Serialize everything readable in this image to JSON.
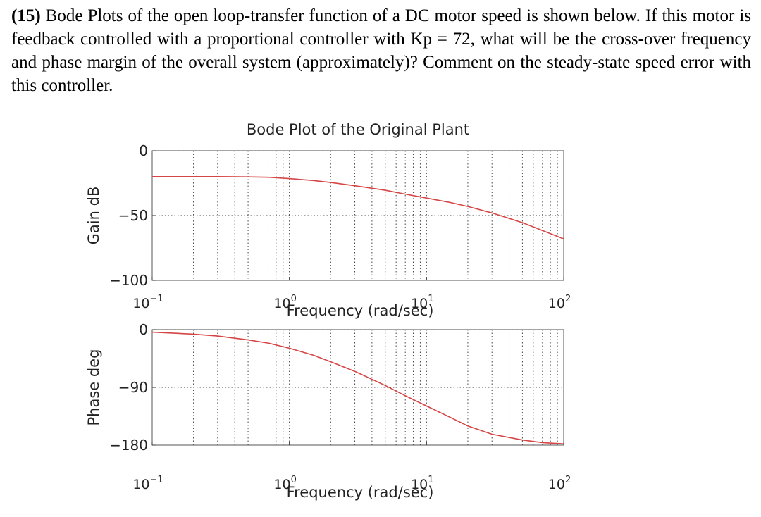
{
  "question": {
    "number": "(15)",
    "text": "Bode Plots of the open loop-transfer function of a DC motor speed is shown below. If this motor is feedback controlled with a proportional controller with Kp = 72, what will be the cross-over frequency and phase margin of the overall system (approximately)? Comment on the steady-state speed error with this controller."
  },
  "chart_data": [
    {
      "type": "line",
      "title": "Bode Plot of the Original Plant",
      "xlabel": "Frequency (rad/sec)",
      "ylabel": "Gain dB",
      "xscale": "log",
      "xlim": [
        0.1,
        100
      ],
      "ylim": [
        -100,
        0
      ],
      "grid": true,
      "yticks": [
        0,
        -50,
        -100
      ],
      "ytick_labels": [
        "0",
        "-50",
        "-100"
      ],
      "xticks": [
        0.1,
        1,
        10,
        100
      ],
      "xtick_labels": [
        {
          "base": "10",
          "exp": "-1"
        },
        {
          "base": "10",
          "exp": "0"
        },
        {
          "base": "10",
          "exp": "1"
        },
        {
          "base": "10",
          "exp": "2"
        }
      ],
      "series": [
        {
          "color": "#d64545",
          "x": [
            0.1,
            0.2,
            0.3,
            0.5,
            0.7,
            1,
            1.5,
            2,
            3,
            5,
            7,
            10,
            15,
            20,
            30,
            50,
            70,
            100
          ],
          "y": [
            -20,
            -20,
            -20,
            -20.2,
            -20.5,
            -21.5,
            -23,
            -24.5,
            -27,
            -30.5,
            -33.5,
            -36.5,
            -40,
            -43,
            -48,
            -55.5,
            -61.5,
            -68
          ]
        }
      ]
    },
    {
      "type": "line",
      "title": "",
      "xlabel": "Frequency (rad/sec)",
      "ylabel": "Phase deg",
      "xscale": "log",
      "xlim": [
        0.1,
        100
      ],
      "ylim": [
        -180,
        0
      ],
      "grid": true,
      "yticks": [
        0,
        -90,
        -180
      ],
      "ytick_labels": [
        "0",
        "-90",
        "-180"
      ],
      "xticks": [
        0.1,
        1,
        10,
        100
      ],
      "xtick_labels": [
        {
          "base": "10",
          "exp": "-1"
        },
        {
          "base": "10",
          "exp": "0"
        },
        {
          "base": "10",
          "exp": "1"
        },
        {
          "base": "10",
          "exp": "2"
        }
      ],
      "series": [
        {
          "color": "#d64545",
          "x": [
            0.1,
            0.2,
            0.3,
            0.5,
            0.7,
            1,
            1.5,
            2,
            3,
            5,
            7,
            10,
            15,
            20,
            30,
            50,
            70,
            100
          ],
          "y": [
            -4,
            -7,
            -10,
            -16,
            -21,
            -29,
            -40,
            -50,
            -65,
            -87,
            -103,
            -119,
            -137,
            -150,
            -163,
            -172,
            -176,
            -178
          ]
        }
      ]
    }
  ]
}
